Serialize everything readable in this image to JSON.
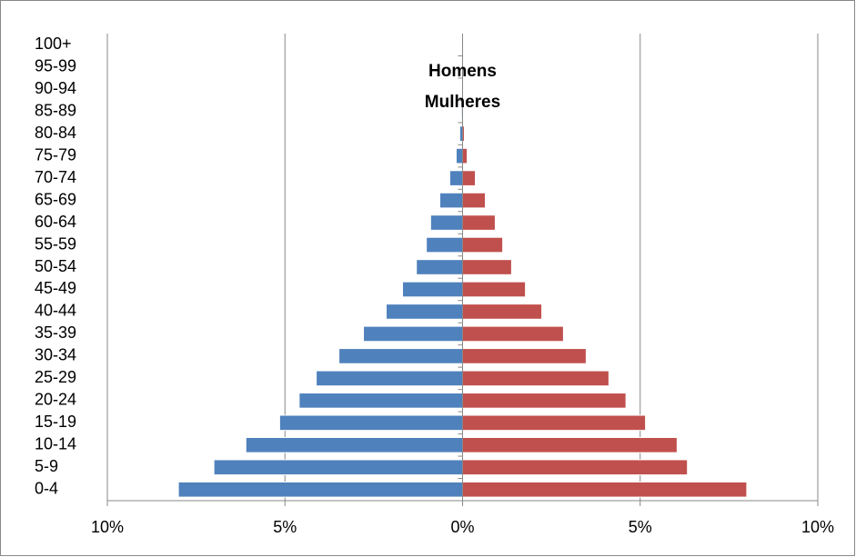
{
  "chart_data": {
    "type": "pyramid",
    "categories": [
      "0-4",
      "5-9",
      "10-14",
      "15-19",
      "20-24",
      "25-29",
      "30-34",
      "35-39",
      "40-44",
      "45-49",
      "50-54",
      "55-59",
      "60-64",
      "65-69",
      "70-74",
      "75-79",
      "80-84",
      "85-89",
      "90-94",
      "95-99",
      "100+"
    ],
    "series": [
      {
        "name": "Homens",
        "color": "#4f81bd",
        "values": [
          -8.0,
          -7.0,
          -6.1,
          -5.15,
          -4.6,
          -4.12,
          -3.48,
          -2.79,
          -2.15,
          -1.69,
          -1.3,
          -1.02,
          -0.9,
          -0.64,
          -0.36,
          -0.18,
          -0.08,
          -0.03,
          -0.01,
          0,
          0
        ]
      },
      {
        "name": "Mulheres",
        "color": "#c0504d",
        "values": [
          8.0,
          6.33,
          6.04,
          5.15,
          4.6,
          4.12,
          3.48,
          2.84,
          2.23,
          1.77,
          1.38,
          1.13,
          0.92,
          0.64,
          0.36,
          0.13,
          0.05,
          0.02,
          0.01,
          0,
          0
        ]
      }
    ],
    "xlim": [
      -10,
      10
    ],
    "xticks": [
      {
        "value": -10,
        "label": "10%"
      },
      {
        "value": -5,
        "label": "5%"
      },
      {
        "value": 0,
        "label": "0%"
      },
      {
        "value": 5,
        "label": "5%"
      },
      {
        "value": 10,
        "label": "10%"
      }
    ],
    "grid": true,
    "legend": "top"
  }
}
